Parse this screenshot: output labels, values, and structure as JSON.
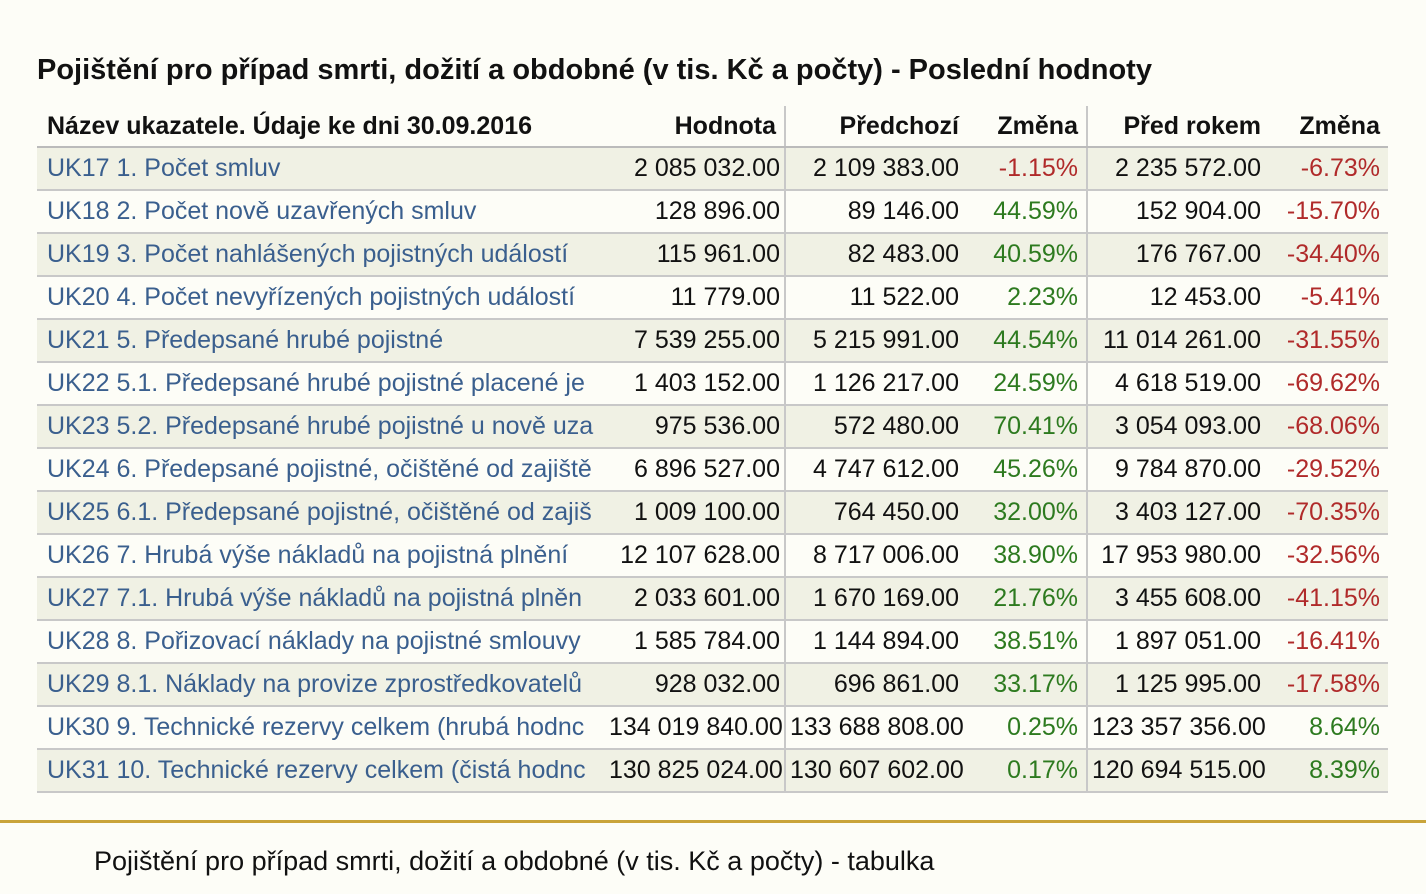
{
  "title": "Pojištění pro případ smrti, dožití a obdobné (v tis. Kč a počty) - Poslední hodnoty",
  "table": {
    "headers": {
      "name": "Název ukazatele. Údaje ke dni 30.09.2016",
      "value": "Hodnota",
      "previous": "Předchozí",
      "change1": "Změna",
      "year_ago": "Před rokem",
      "change2": "Změna"
    },
    "rows": [
      {
        "name": "UK17 1. Počet smluv",
        "value": "2 085 032.00",
        "previous": "2 109 383.00",
        "change1": "-1.15%",
        "year_ago": "2 235 572.00",
        "change2": "-6.73%"
      },
      {
        "name": "UK18 2. Počet nově uzavřených smluv",
        "value": "128 896.00",
        "previous": "89 146.00",
        "change1": "44.59%",
        "year_ago": "152 904.00",
        "change2": "-15.70%"
      },
      {
        "name": "UK19 3. Počet nahlášených pojistných událostí",
        "value": "115 961.00",
        "previous": "82 483.00",
        "change1": "40.59%",
        "year_ago": "176 767.00",
        "change2": "-34.40%"
      },
      {
        "name": "UK20 4. Počet nevyřízených pojistných událostí",
        "value": "11 779.00",
        "previous": "11 522.00",
        "change1": "2.23%",
        "year_ago": "12 453.00",
        "change2": "-5.41%"
      },
      {
        "name": "UK21 5. Předepsané hrubé pojistné",
        "value": "7 539 255.00",
        "previous": "5 215 991.00",
        "change1": "44.54%",
        "year_ago": "11 014 261.00",
        "change2": "-31.55%"
      },
      {
        "name": "UK22 5.1. Předepsané hrubé pojistné placené je",
        "value": "1 403 152.00",
        "previous": "1 126 217.00",
        "change1": "24.59%",
        "year_ago": "4 618 519.00",
        "change2": "-69.62%"
      },
      {
        "name": "UK23 5.2. Předepsané hrubé pojistné u nově uza",
        "value": "975 536.00",
        "previous": "572 480.00",
        "change1": "70.41%",
        "year_ago": "3 054 093.00",
        "change2": "-68.06%"
      },
      {
        "name": "UK24 6. Předepsané pojistné, očištěné od zajiště",
        "value": "6 896 527.00",
        "previous": "4 747 612.00",
        "change1": "45.26%",
        "year_ago": "9 784 870.00",
        "change2": "-29.52%"
      },
      {
        "name": "UK25 6.1. Předepsané pojistné, očištěné od zajiš",
        "value": "1 009 100.00",
        "previous": "764 450.00",
        "change1": "32.00%",
        "year_ago": "3 403 127.00",
        "change2": "-70.35%"
      },
      {
        "name": "UK26 7. Hrubá výše nákladů na pojistná plnění",
        "value": "12 107 628.00",
        "previous": "8 717 006.00",
        "change1": "38.90%",
        "year_ago": "17 953 980.00",
        "change2": "-32.56%"
      },
      {
        "name": "UK27 7.1. Hrubá výše nákladů na pojistná plněn",
        "value": "2 033 601.00",
        "previous": "1 670 169.00",
        "change1": "21.76%",
        "year_ago": "3 455 608.00",
        "change2": "-41.15%"
      },
      {
        "name": "UK28 8. Pořizovací náklady na pojistné smlouvy",
        "value": "1 585 784.00",
        "previous": "1 144 894.00",
        "change1": "38.51%",
        "year_ago": "1 897 051.00",
        "change2": "-16.41%"
      },
      {
        "name": "UK29 8.1. Náklady na provize zprostředkovatelů",
        "value": "928 032.00",
        "previous": "696 861.00",
        "change1": "33.17%",
        "year_ago": "1 125 995.00",
        "change2": "-17.58%"
      },
      {
        "name": "UK30 9. Technické rezervy celkem (hrubá hodnc",
        "value": "134 019 840.00",
        "previous": "133 688 808.00",
        "change1": "0.25%",
        "year_ago": "123 357 356.00",
        "change2": "8.64%"
      },
      {
        "name": "UK31 10. Technické rezervy celkem (čistá hodnc",
        "value": "130 825 024.00",
        "previous": "130 607 602.00",
        "change1": "0.17%",
        "year_ago": "120 694 515.00",
        "change2": "8.39%"
      }
    ]
  },
  "colors": {
    "negative": "#b02a2a",
    "positive": "#2d7a1f",
    "link": "#3a5f8e",
    "divider": "#c9a43a"
  },
  "caption": "Pojištění pro případ smrti, dožití a obdobné (v tis. Kč a počty) - tabulka"
}
